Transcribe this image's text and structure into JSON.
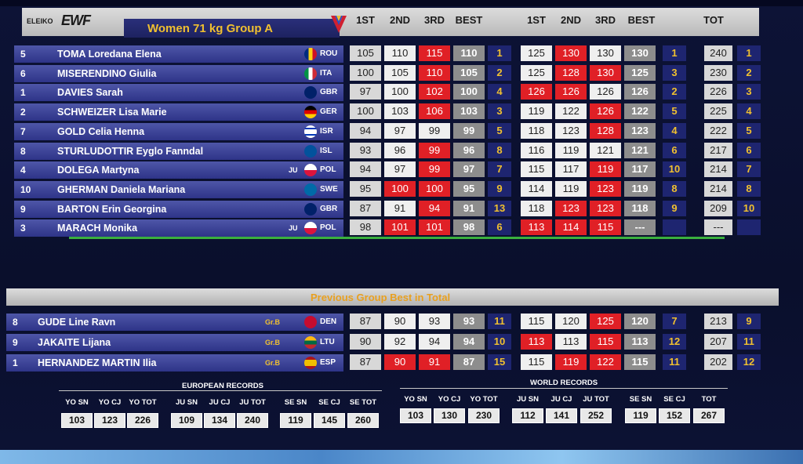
{
  "header": {
    "logo_text": "ELEIKO",
    "brand": "EWF",
    "title": "Women 71 kg Group A",
    "columns": [
      "1ST",
      "2ND",
      "3RD",
      "BEST",
      "1ST",
      "2ND",
      "3RD",
      "BEST",
      "TOT"
    ]
  },
  "athletes": [
    {
      "lot": "5",
      "name": "TOMA Loredana Elena",
      "tag": "",
      "nat": "ROU",
      "sn": [
        [
          "105",
          "g"
        ],
        [
          "110",
          "w"
        ],
        [
          "115",
          "r"
        ],
        [
          "110",
          "b"
        ]
      ],
      "snr": "1",
      "cj": [
        [
          "125",
          "w"
        ],
        [
          "130",
          "r"
        ],
        [
          "130",
          "w"
        ],
        [
          "130",
          "b"
        ]
      ],
      "cjr": "1",
      "tot": "240",
      "totr": "1"
    },
    {
      "lot": "6",
      "name": "MISERENDINO Giulia",
      "tag": "",
      "nat": "ITA",
      "sn": [
        [
          "100",
          "g"
        ],
        [
          "105",
          "w"
        ],
        [
          "110",
          "r"
        ],
        [
          "105",
          "b"
        ]
      ],
      "snr": "2",
      "cj": [
        [
          "125",
          "w"
        ],
        [
          "128",
          "r"
        ],
        [
          "130",
          "r"
        ],
        [
          "125",
          "b"
        ]
      ],
      "cjr": "3",
      "tot": "230",
      "totr": "2"
    },
    {
      "lot": "1",
      "name": "DAVIES Sarah",
      "tag": "",
      "nat": "GBR",
      "sn": [
        [
          "97",
          "g"
        ],
        [
          "100",
          "w"
        ],
        [
          "102",
          "r"
        ],
        [
          "100",
          "b"
        ]
      ],
      "snr": "4",
      "cj": [
        [
          "126",
          "r"
        ],
        [
          "126",
          "r"
        ],
        [
          "126",
          "w"
        ],
        [
          "126",
          "b"
        ]
      ],
      "cjr": "2",
      "tot": "226",
      "totr": "3"
    },
    {
      "lot": "2",
      "name": "SCHWEIZER Lisa Marie",
      "tag": "",
      "nat": "GER",
      "sn": [
        [
          "100",
          "g"
        ],
        [
          "103",
          "w"
        ],
        [
          "106",
          "r"
        ],
        [
          "103",
          "b"
        ]
      ],
      "snr": "3",
      "cj": [
        [
          "119",
          "w"
        ],
        [
          "122",
          "w"
        ],
        [
          "126",
          "r"
        ],
        [
          "122",
          "b"
        ]
      ],
      "cjr": "5",
      "tot": "225",
      "totr": "4"
    },
    {
      "lot": "7",
      "name": "GOLD Celia Henna",
      "tag": "",
      "nat": "ISR",
      "sn": [
        [
          "94",
          "g"
        ],
        [
          "97",
          "w"
        ],
        [
          "99",
          "w"
        ],
        [
          "99",
          "b"
        ]
      ],
      "snr": "5",
      "cj": [
        [
          "118",
          "w"
        ],
        [
          "123",
          "w"
        ],
        [
          "128",
          "r"
        ],
        [
          "123",
          "b"
        ]
      ],
      "cjr": "4",
      "tot": "222",
      "totr": "5"
    },
    {
      "lot": "8",
      "name": "STURLUDOTTIR Eyglo Fanndal",
      "tag": "",
      "nat": "ISL",
      "sn": [
        [
          "93",
          "g"
        ],
        [
          "96",
          "w"
        ],
        [
          "99",
          "r"
        ],
        [
          "96",
          "b"
        ]
      ],
      "snr": "8",
      "cj": [
        [
          "116",
          "w"
        ],
        [
          "119",
          "w"
        ],
        [
          "121",
          "w"
        ],
        [
          "121",
          "b"
        ]
      ],
      "cjr": "6",
      "tot": "217",
      "totr": "6"
    },
    {
      "lot": "4",
      "name": "DOLEGA Martyna",
      "tag": "JU",
      "nat": "POL",
      "sn": [
        [
          "94",
          "g"
        ],
        [
          "97",
          "w"
        ],
        [
          "99",
          "r"
        ],
        [
          "97",
          "b"
        ]
      ],
      "snr": "7",
      "cj": [
        [
          "115",
          "w"
        ],
        [
          "117",
          "w"
        ],
        [
          "119",
          "r"
        ],
        [
          "117",
          "b"
        ]
      ],
      "cjr": "10",
      "tot": "214",
      "totr": "7"
    },
    {
      "lot": "10",
      "name": "GHERMAN Daniela Mariana",
      "tag": "",
      "nat": "SWE",
      "sn": [
        [
          "95",
          "g"
        ],
        [
          "100",
          "r"
        ],
        [
          "100",
          "r"
        ],
        [
          "95",
          "b"
        ]
      ],
      "snr": "9",
      "cj": [
        [
          "114",
          "w"
        ],
        [
          "119",
          "w"
        ],
        [
          "123",
          "r"
        ],
        [
          "119",
          "b"
        ]
      ],
      "cjr": "8",
      "tot": "214",
      "totr": "8"
    },
    {
      "lot": "9",
      "name": "BARTON Erin Georgina",
      "tag": "",
      "nat": "GBR",
      "sn": [
        [
          "87",
          "g"
        ],
        [
          "91",
          "w"
        ],
        [
          "94",
          "r"
        ],
        [
          "91",
          "b"
        ]
      ],
      "snr": "13",
      "cj": [
        [
          "118",
          "w"
        ],
        [
          "123",
          "r"
        ],
        [
          "123",
          "r"
        ],
        [
          "118",
          "b"
        ]
      ],
      "cjr": "9",
      "tot": "209",
      "totr": "10"
    },
    {
      "lot": "3",
      "name": "MARACH Monika",
      "tag": "JU",
      "nat": "POL",
      "sn": [
        [
          "98",
          "g"
        ],
        [
          "101",
          "r"
        ],
        [
          "101",
          "r"
        ],
        [
          "98",
          "b"
        ]
      ],
      "snr": "6",
      "cj": [
        [
          "113",
          "r"
        ],
        [
          "114",
          "r"
        ],
        [
          "115",
          "r"
        ],
        [
          "---",
          "b"
        ]
      ],
      "cjr": "",
      "tot": "---",
      "totr": ""
    }
  ],
  "previous": {
    "title": "Previous Group Best in Total",
    "athletes": [
      {
        "lot": "8",
        "name": "GUDE Line Ravn",
        "tag": "Gr.B",
        "nat": "DEN",
        "sn": [
          [
            "87",
            "g"
          ],
          [
            "90",
            "w"
          ],
          [
            "93",
            "w"
          ],
          [
            "93",
            "b"
          ]
        ],
        "snr": "11",
        "cj": [
          [
            "115",
            "w"
          ],
          [
            "120",
            "w"
          ],
          [
            "125",
            "r"
          ],
          [
            "120",
            "b"
          ]
        ],
        "cjr": "7",
        "tot": "213",
        "totr": "9"
      },
      {
        "lot": "9",
        "name": "JAKAITE Lijana",
        "tag": "Gr.B",
        "nat": "LTU",
        "sn": [
          [
            "90",
            "g"
          ],
          [
            "92",
            "w"
          ],
          [
            "94",
            "w"
          ],
          [
            "94",
            "b"
          ]
        ],
        "snr": "10",
        "cj": [
          [
            "113",
            "r"
          ],
          [
            "113",
            "w"
          ],
          [
            "115",
            "r"
          ],
          [
            "113",
            "b"
          ]
        ],
        "cjr": "12",
        "tot": "207",
        "totr": "11"
      },
      {
        "lot": "1",
        "name": "HERNANDEZ MARTIN Ilia",
        "tag": "Gr.B",
        "nat": "ESP",
        "sn": [
          [
            "87",
            "g"
          ],
          [
            "90",
            "r"
          ],
          [
            "91",
            "r"
          ],
          [
            "87",
            "b"
          ]
        ],
        "snr": "15",
        "cj": [
          [
            "115",
            "w"
          ],
          [
            "119",
            "r"
          ],
          [
            "122",
            "r"
          ],
          [
            "115",
            "b"
          ]
        ],
        "cjr": "11",
        "tot": "202",
        "totr": "12"
      }
    ]
  },
  "records": {
    "european": {
      "title": "EUROPEAN RECORDS",
      "labels": [
        "YO SN",
        "YO CJ",
        "YO TOT",
        "JU SN",
        "JU CJ",
        "JU TOT",
        "SE SN",
        "SE CJ",
        "SE TOT"
      ],
      "values": [
        "103",
        "123",
        "226",
        "109",
        "134",
        "240",
        "119",
        "145",
        "260"
      ]
    },
    "world": {
      "title": "WORLD RECORDS",
      "labels": [
        "YO SN",
        "YO CJ",
        "YO TOT",
        "JU SN",
        "JU CJ",
        "JU TOT",
        "SE SN",
        "SE CJ",
        "TOT"
      ],
      "values": [
        "103",
        "130",
        "230",
        "112",
        "141",
        "252",
        "119",
        "152",
        "267"
      ]
    }
  },
  "colors": {
    "red": "#e02026",
    "best": "#8d8d8d",
    "gold": "#f0c030",
    "navy": "#2e3488"
  }
}
